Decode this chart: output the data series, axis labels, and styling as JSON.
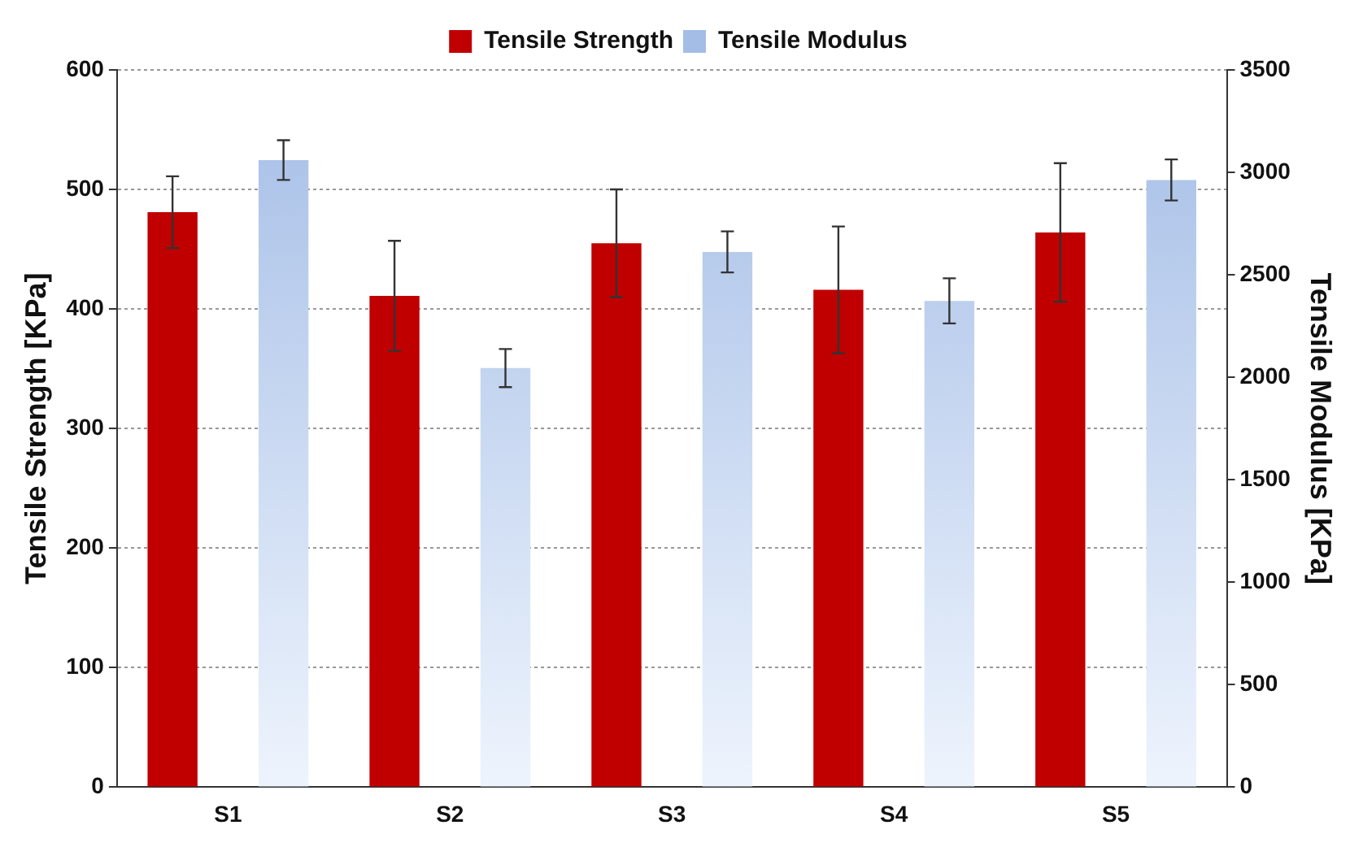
{
  "chart_data": {
    "type": "bar",
    "categories": [
      "S1",
      "S2",
      "S3",
      "S4",
      "S5"
    ],
    "ylabel": "Tensile Strength [KPa]",
    "y2label": "Tensile Modulus [KPa]",
    "series": [
      {
        "name": "Tensile Strength",
        "color": "#c00000",
        "values": [
          481,
          411,
          455,
          416,
          464
        ],
        "errors": [
          30,
          46,
          45,
          53,
          58
        ]
      },
      {
        "name": "Tensile Modulus",
        "color": "#a4bde6",
        "axis": "y2",
        "values": [
          3060,
          2045,
          2612,
          2373,
          2963
        ],
        "errors": [
          97,
          93,
          100,
          110,
          100
        ]
      }
    ],
    "ylim": [
      0,
      600
    ],
    "yticks": [
      0,
      100,
      200,
      300,
      400,
      500,
      600
    ],
    "y2lim": [
      0,
      3500
    ],
    "y2ticks": [
      0,
      500,
      1000,
      1500,
      2000,
      2500,
      3000,
      3500
    ],
    "grid": "y",
    "legend": "top"
  }
}
